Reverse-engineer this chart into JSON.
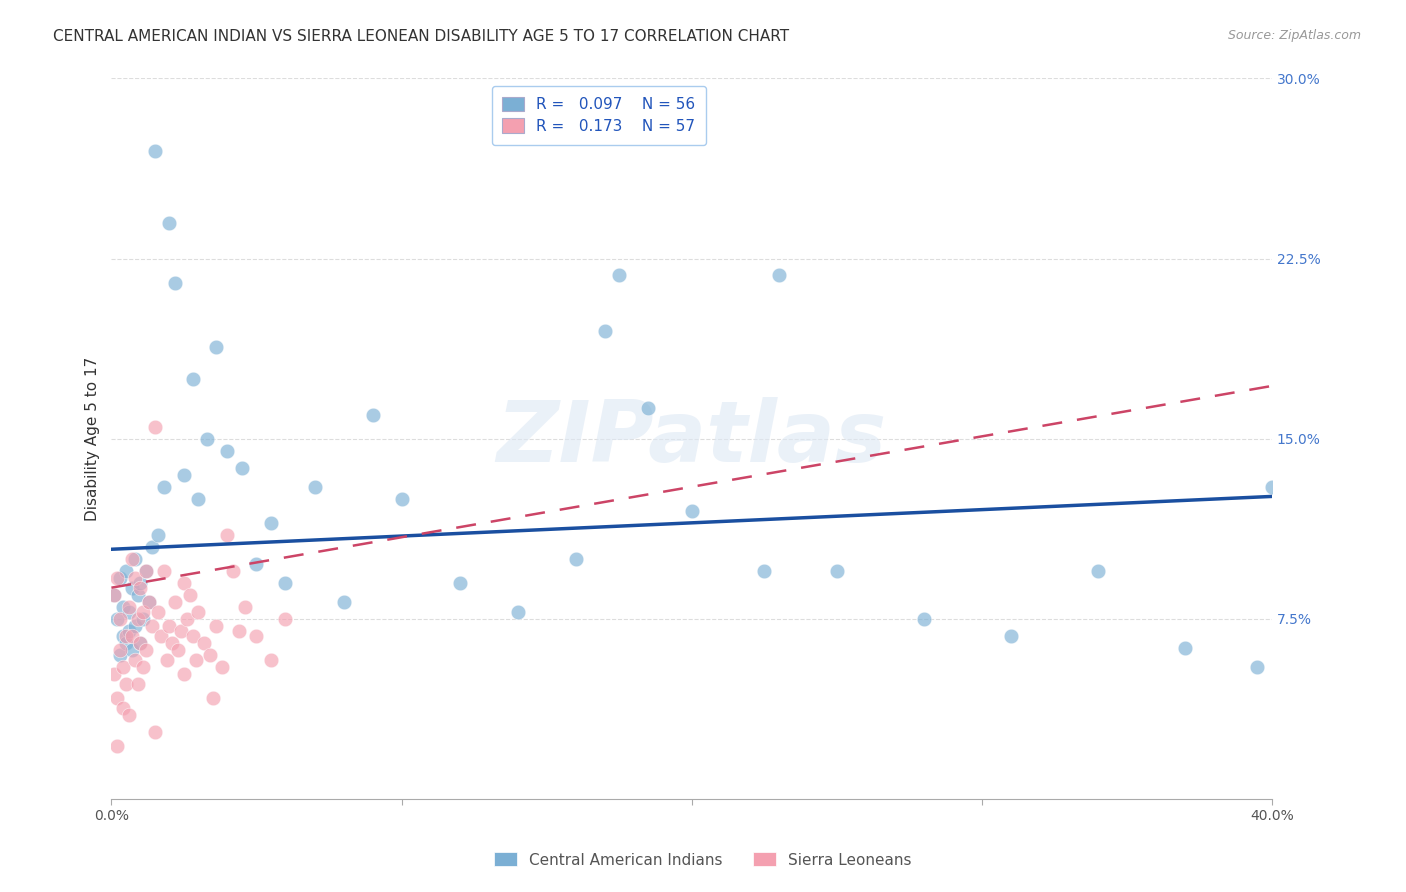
{
  "title": "CENTRAL AMERICAN INDIAN VS SIERRA LEONEAN DISABILITY AGE 5 TO 17 CORRELATION CHART",
  "source": "Source: ZipAtlas.com",
  "ylabel": "Disability Age 5 to 17",
  "xlim": [
    0.0,
    0.4
  ],
  "ylim": [
    0.0,
    0.3
  ],
  "xticks": [
    0.0,
    0.1,
    0.2,
    0.3,
    0.4
  ],
  "xticklabels": [
    "0.0%",
    "",
    "",
    "",
    "40.0%"
  ],
  "yticks_right": [
    0.075,
    0.15,
    0.225,
    0.3
  ],
  "yticklabels_right": [
    "7.5%",
    "15.0%",
    "22.5%",
    "30.0%"
  ],
  "grid_color": "#cccccc",
  "background_color": "#ffffff",
  "watermark": "ZIPatlas",
  "legend_R1_val": "0.097",
  "legend_N1_val": "56",
  "legend_R2_val": "0.173",
  "legend_N2_val": "57",
  "series1_color": "#7bafd4",
  "series2_color": "#f4a0b0",
  "series1_label": "Central American Indians",
  "series2_label": "Sierra Leoneans",
  "series1_line_color": "#1a4fa0",
  "series2_line_color": "#cc4466",
  "title_fontsize": 11,
  "axis_label_fontsize": 11,
  "tick_fontsize": 10,
  "series1_x": [
    0.001,
    0.002,
    0.003,
    0.003,
    0.004,
    0.004,
    0.005,
    0.005,
    0.006,
    0.006,
    0.007,
    0.007,
    0.008,
    0.008,
    0.009,
    0.01,
    0.01,
    0.011,
    0.012,
    0.013,
    0.014,
    0.015,
    0.016,
    0.018,
    0.02,
    0.022,
    0.025,
    0.028,
    0.03,
    0.033,
    0.036,
    0.04,
    0.045,
    0.05,
    0.055,
    0.06,
    0.07,
    0.08,
    0.09,
    0.1,
    0.12,
    0.14,
    0.16,
    0.185,
    0.2,
    0.225,
    0.25,
    0.28,
    0.31,
    0.34,
    0.37,
    0.395,
    0.17,
    0.23,
    0.175,
    0.4
  ],
  "series1_y": [
    0.085,
    0.075,
    0.092,
    0.06,
    0.08,
    0.068,
    0.095,
    0.065,
    0.078,
    0.07,
    0.088,
    0.062,
    0.1,
    0.072,
    0.085,
    0.09,
    0.065,
    0.075,
    0.095,
    0.082,
    0.105,
    0.27,
    0.11,
    0.13,
    0.24,
    0.215,
    0.135,
    0.175,
    0.125,
    0.15,
    0.188,
    0.145,
    0.138,
    0.098,
    0.115,
    0.09,
    0.13,
    0.082,
    0.16,
    0.125,
    0.09,
    0.078,
    0.1,
    0.163,
    0.12,
    0.095,
    0.095,
    0.075,
    0.068,
    0.095,
    0.063,
    0.055,
    0.195,
    0.218,
    0.218,
    0.13
  ],
  "series2_x": [
    0.001,
    0.001,
    0.002,
    0.002,
    0.003,
    0.003,
    0.004,
    0.004,
    0.005,
    0.005,
    0.006,
    0.006,
    0.007,
    0.007,
    0.008,
    0.008,
    0.009,
    0.009,
    0.01,
    0.01,
    0.011,
    0.011,
    0.012,
    0.012,
    0.013,
    0.014,
    0.015,
    0.016,
    0.017,
    0.018,
    0.019,
    0.02,
    0.021,
    0.022,
    0.023,
    0.024,
    0.025,
    0.026,
    0.027,
    0.028,
    0.029,
    0.03,
    0.032,
    0.034,
    0.036,
    0.038,
    0.04,
    0.042,
    0.044,
    0.046,
    0.05,
    0.055,
    0.06,
    0.002,
    0.015,
    0.025,
    0.035
  ],
  "series2_y": [
    0.085,
    0.052,
    0.092,
    0.042,
    0.075,
    0.062,
    0.055,
    0.038,
    0.068,
    0.048,
    0.08,
    0.035,
    0.1,
    0.068,
    0.092,
    0.058,
    0.075,
    0.048,
    0.088,
    0.065,
    0.078,
    0.055,
    0.095,
    0.062,
    0.082,
    0.072,
    0.155,
    0.078,
    0.068,
    0.095,
    0.058,
    0.072,
    0.065,
    0.082,
    0.062,
    0.07,
    0.09,
    0.075,
    0.085,
    0.068,
    0.058,
    0.078,
    0.065,
    0.06,
    0.072,
    0.055,
    0.11,
    0.095,
    0.07,
    0.08,
    0.068,
    0.058,
    0.075,
    0.022,
    0.028,
    0.052,
    0.042
  ]
}
